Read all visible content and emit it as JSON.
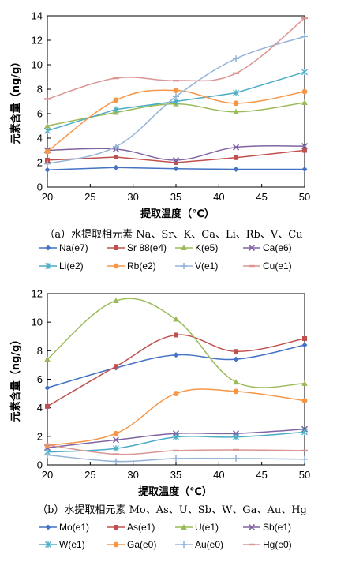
{
  "chart_data": [
    {
      "type": "line",
      "x": [
        20,
        28,
        35,
        42,
        50
      ],
      "xlim": [
        20,
        50
      ],
      "ylim": [
        0,
        14
      ],
      "xticks": [
        "20",
        "25",
        "30",
        "35",
        "40",
        "45",
        "50"
      ],
      "yticks": [
        "0",
        "2",
        "4",
        "6",
        "8",
        "10",
        "12",
        "14"
      ],
      "xlabel": "提取温度（℃）",
      "ylabel": "元素含量（ng/g）",
      "caption": "（a）水提取相元素 Na、Sr、K、Ca、Li、Rb、V、Cu",
      "grid": false,
      "legend_position": "bottom",
      "series": [
        {
          "name": "Na(e7)",
          "color": "#4472C4",
          "marker": "diamond",
          "smooth": false,
          "values": [
            1.4,
            1.6,
            1.5,
            1.45,
            1.45
          ]
        },
        {
          "name": "Sr 88(e4)",
          "color": "#C0504D",
          "marker": "square",
          "smooth": false,
          "values": [
            2.2,
            2.45,
            2.0,
            2.4,
            3.0
          ]
        },
        {
          "name": "K(e5)",
          "color": "#9BBB59",
          "marker": "triangle",
          "smooth": true,
          "values": [
            5.0,
            6.1,
            6.8,
            6.15,
            6.9
          ]
        },
        {
          "name": "Ca(e6)",
          "color": "#8064A2",
          "marker": "x",
          "smooth": true,
          "values": [
            3.0,
            3.1,
            2.2,
            3.25,
            3.35
          ]
        },
        {
          "name": "Li(e2)",
          "color": "#4BACC6",
          "marker": "star",
          "smooth": false,
          "values": [
            4.6,
            6.35,
            7.0,
            7.7,
            9.4
          ]
        },
        {
          "name": "Rb(e2)",
          "color": "#F79646",
          "marker": "circle",
          "smooth": true,
          "values": [
            2.9,
            7.1,
            7.9,
            6.85,
            7.8
          ]
        },
        {
          "name": "V(e1)",
          "color": "#95B3D7",
          "marker": "plus",
          "smooth": true,
          "values": [
            1.9,
            3.3,
            7.4,
            10.5,
            12.3
          ]
        },
        {
          "name": "Cu(e1)",
          "color": "#D99694",
          "marker": "dash",
          "smooth": true,
          "values": [
            7.2,
            8.9,
            8.7,
            9.3,
            13.8
          ]
        }
      ]
    },
    {
      "type": "line",
      "x": [
        20,
        28,
        35,
        42,
        50
      ],
      "xlim": [
        20,
        50
      ],
      "ylim": [
        0,
        12
      ],
      "xticks": [
        "20",
        "25",
        "30",
        "35",
        "40",
        "45",
        "50"
      ],
      "yticks": [
        "0",
        "2",
        "4",
        "6",
        "8",
        "10",
        "12"
      ],
      "xlabel": "提取温度（℃）",
      "ylabel": "元素含量（ng/g）",
      "caption": "（b）水提取相元素 Mo、As、U、Sb、W、Ga、Au、Hg",
      "grid": false,
      "legend_position": "bottom",
      "series": [
        {
          "name": "Mo(e1)",
          "color": "#4472C4",
          "marker": "diamond",
          "smooth": true,
          "values": [
            5.4,
            6.8,
            7.7,
            7.4,
            8.4
          ]
        },
        {
          "name": "As(e1)",
          "color": "#C0504D",
          "marker": "square",
          "smooth": true,
          "values": [
            4.1,
            6.9,
            9.1,
            7.95,
            8.85
          ]
        },
        {
          "name": "U(e1)",
          "color": "#9BBB59",
          "marker": "triangle",
          "smooth": true,
          "values": [
            7.4,
            11.5,
            10.2,
            5.8,
            5.7
          ]
        },
        {
          "name": "Sb(e1)",
          "color": "#8064A2",
          "marker": "x",
          "smooth": true,
          "values": [
            1.2,
            1.75,
            2.2,
            2.2,
            2.5
          ]
        },
        {
          "name": "W(e1)",
          "color": "#4BACC6",
          "marker": "star",
          "smooth": true,
          "values": [
            0.9,
            1.15,
            1.95,
            1.95,
            2.3
          ]
        },
        {
          "name": "Ga(e0)",
          "color": "#F79646",
          "marker": "circle",
          "smooth": true,
          "values": [
            1.35,
            2.2,
            5.0,
            5.15,
            4.5
          ]
        },
        {
          "name": "Au(e0)",
          "color": "#95B3D7",
          "marker": "plus",
          "smooth": true,
          "values": [
            0.7,
            0.25,
            0.45,
            0.45,
            0.4
          ]
        },
        {
          "name": "Hg(e0)",
          "color": "#D99694",
          "marker": "dash",
          "smooth": true,
          "values": [
            1.4,
            0.75,
            1.0,
            1.05,
            1.0
          ]
        }
      ]
    }
  ]
}
